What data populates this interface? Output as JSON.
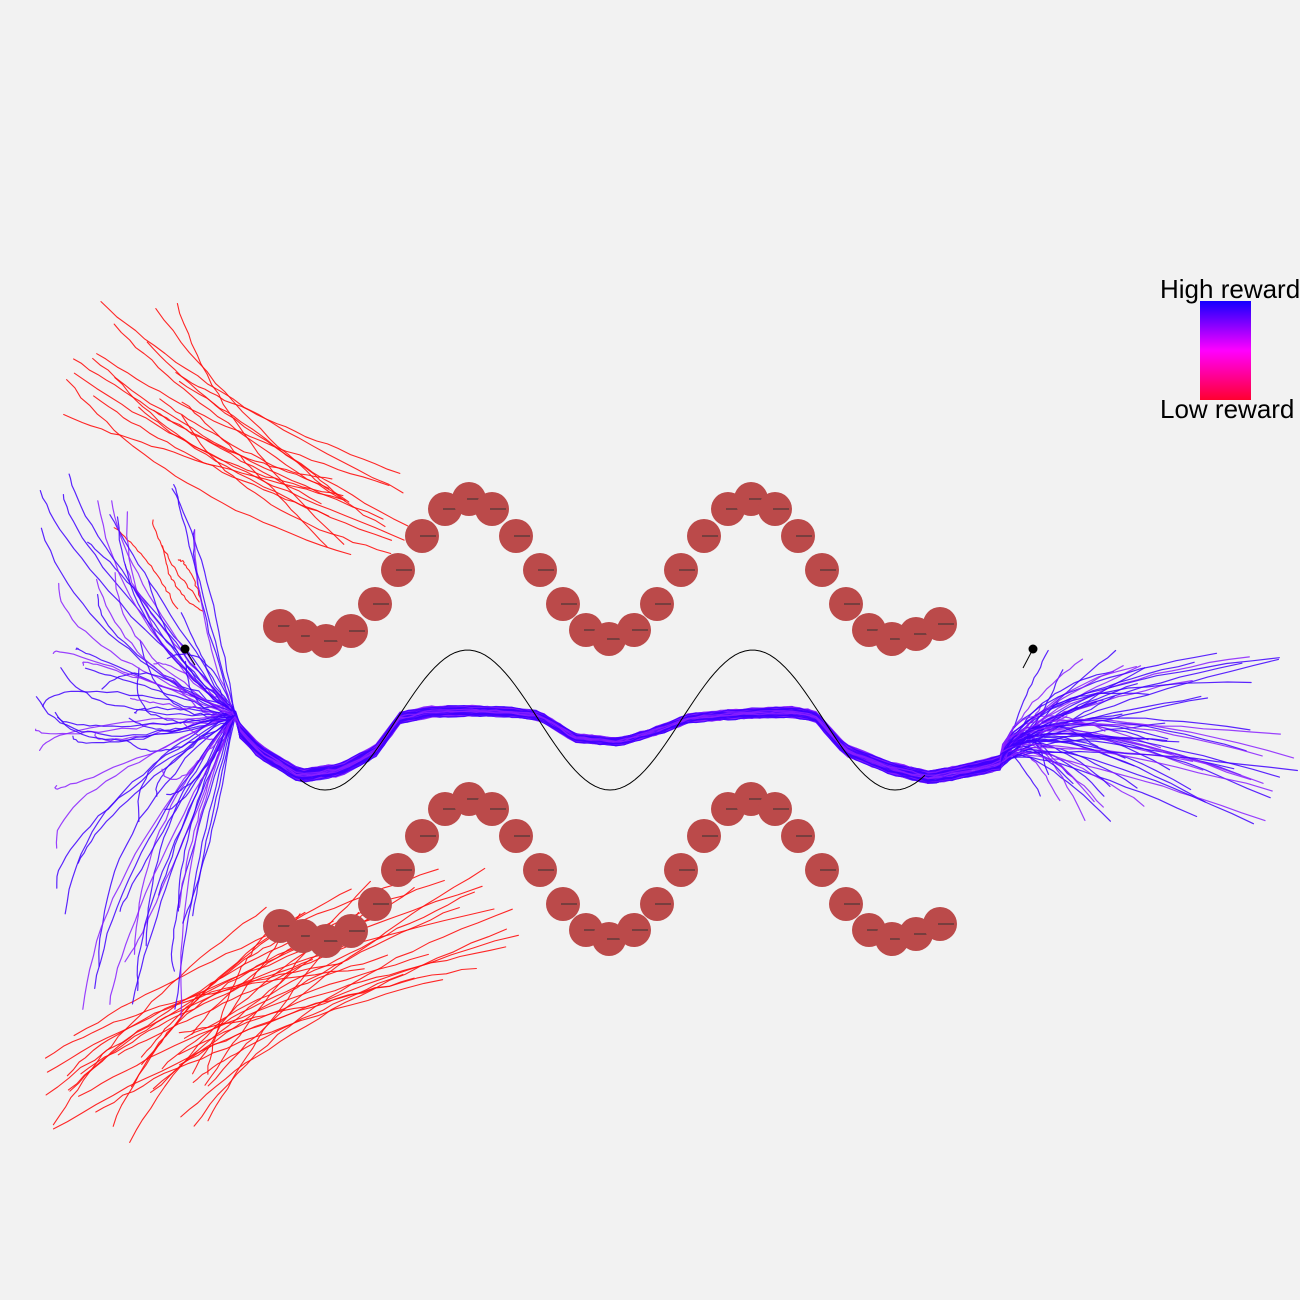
{
  "legend": {
    "high_label": "High reward",
    "low_label": "Low reward",
    "high_color": "#1400ff",
    "mid_color": "#ff00ff",
    "low_color": "#ff0030"
  },
  "colors": {
    "background": "#f2f2f2",
    "obstacle": "#bb4a4a",
    "reference_path": "#000000",
    "marker": "#000000",
    "high_reward_path": "#3f00ff",
    "mid_reward_path": "#8a20ff",
    "low_reward_path": "#ff1010"
  },
  "obstacles": {
    "rows": 2,
    "periods_per_row": 2
  }
}
